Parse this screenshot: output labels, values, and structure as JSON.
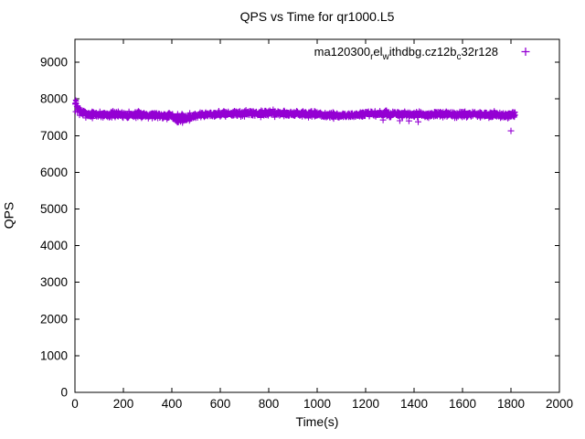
{
  "chart_data": {
    "type": "scatter",
    "title": "QPS vs Time for qr1000.L5",
    "xlabel": "Time(s)",
    "ylabel": "QPS",
    "xlim": [
      0,
      2000
    ],
    "ylim": [
      0,
      9625
    ],
    "xticks": [
      0,
      200,
      400,
      600,
      800,
      1000,
      1200,
      1400,
      1600,
      1800,
      2000
    ],
    "yticks": [
      0,
      1000,
      2000,
      3000,
      4000,
      5000,
      6000,
      7000,
      8000,
      9000
    ],
    "grid": false,
    "background_color": "#ffffff",
    "axis_color": "#000000",
    "legend": {
      "position": "top-right-inside",
      "entries": [
        {
          "label_raw": "ma120300_rel_withdbg.cz12b_c32r128",
          "label_segments": [
            {
              "text": "ma120300",
              "sub": false
            },
            {
              "text": "r",
              "sub": true
            },
            {
              "text": "el",
              "sub": false
            },
            {
              "text": "w",
              "sub": true
            },
            {
              "text": "ithdbg.cz12b",
              "sub": false
            },
            {
              "text": "c",
              "sub": true
            },
            {
              "text": "32r128",
              "sub": false
            }
          ],
          "marker": "+",
          "color": "#9400D3"
        }
      ]
    },
    "series": [
      {
        "name": "ma120300_rel_withdbg.cz12b_c32r128",
        "marker": "+",
        "color": "#9400D3",
        "description": "~1815 QPS samples, one per second; steady band near 7550-7600 QPS from t=0 to t~1815, brief warmup spike to ~7900 at start, shallow dip to ~7475 around t=420-460, stray low points ~7370-7425 near t=1270-1420, single low outlier near t=1800",
        "t_start": 0,
        "t_end": 1818,
        "t_step": 1,
        "seed": 7,
        "mean_profile": [
          [
            0,
            7810
          ],
          [
            4,
            7870
          ],
          [
            8,
            7810
          ],
          [
            15,
            7710
          ],
          [
            25,
            7630
          ],
          [
            60,
            7575
          ],
          [
            200,
            7570
          ],
          [
            330,
            7565
          ],
          [
            385,
            7550
          ],
          [
            410,
            7500
          ],
          [
            430,
            7475
          ],
          [
            455,
            7475
          ],
          [
            480,
            7520
          ],
          [
            515,
            7565
          ],
          [
            600,
            7595
          ],
          [
            700,
            7605
          ],
          [
            830,
            7615
          ],
          [
            910,
            7595
          ],
          [
            990,
            7575
          ],
          [
            1060,
            7545
          ],
          [
            1130,
            7550
          ],
          [
            1210,
            7585
          ],
          [
            1300,
            7590
          ],
          [
            1390,
            7565
          ],
          [
            1470,
            7575
          ],
          [
            1600,
            7575
          ],
          [
            1720,
            7570
          ],
          [
            1818,
            7565
          ]
        ],
        "std_profile": [
          [
            0,
            95
          ],
          [
            20,
            70
          ],
          [
            40,
            45
          ],
          [
            380,
            45
          ],
          [
            410,
            52
          ],
          [
            460,
            52
          ],
          [
            500,
            42
          ],
          [
            900,
            42
          ],
          [
            1818,
            40
          ]
        ],
        "extra_points": [
          [
            419,
            7400
          ],
          [
            427,
            7370
          ],
          [
            436,
            7385
          ],
          [
            444,
            7355
          ],
          [
            1272,
            7425
          ],
          [
            1341,
            7405
          ],
          [
            1379,
            7400
          ],
          [
            1417,
            7375
          ],
          [
            1800,
            7130
          ]
        ]
      }
    ]
  }
}
